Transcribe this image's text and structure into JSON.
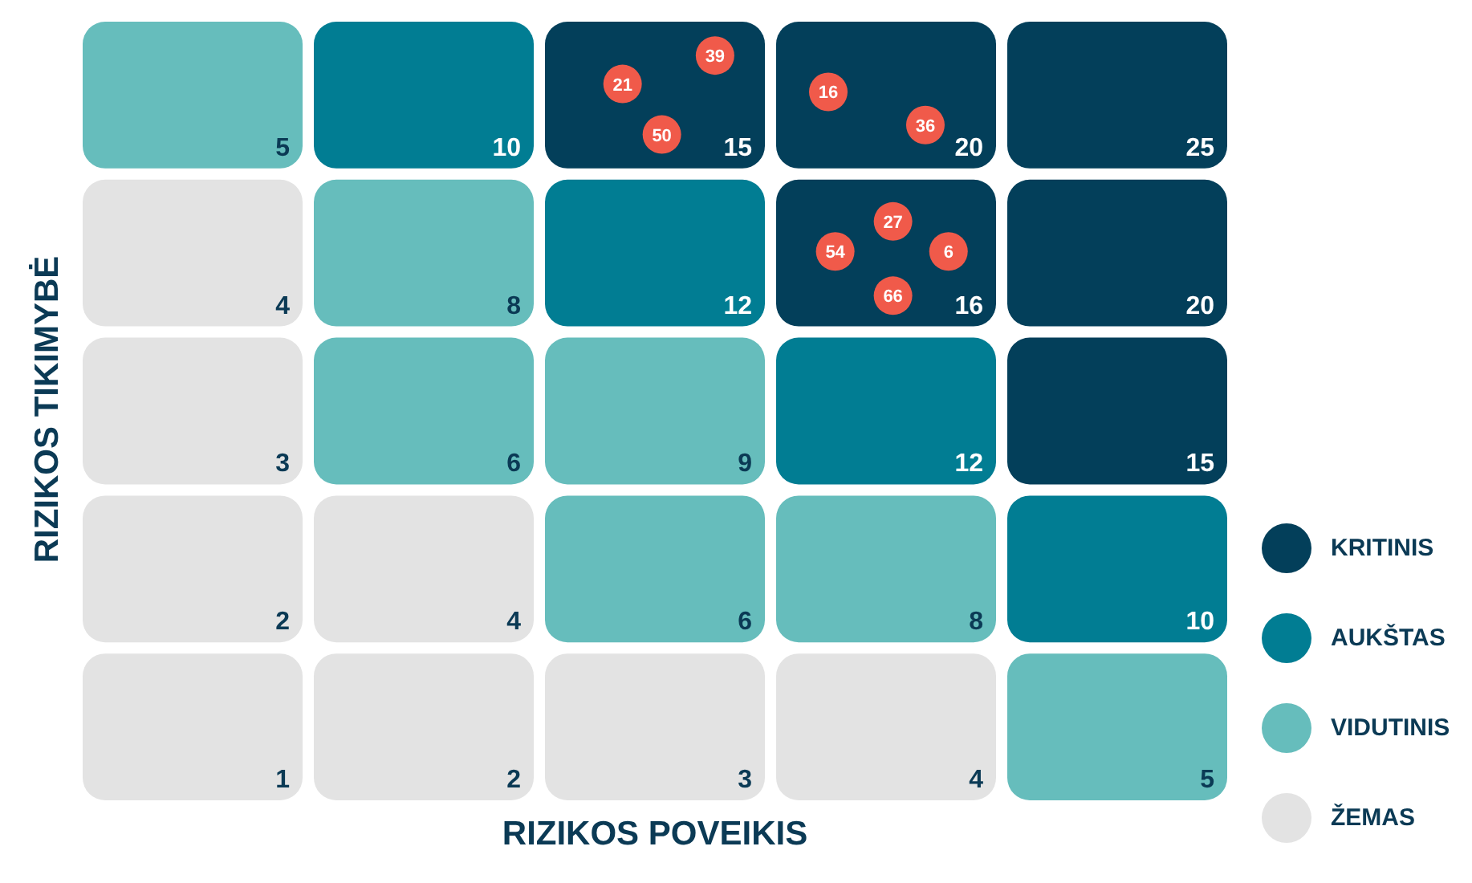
{
  "chart_data": [
    {
      "type": "heatmap",
      "xlabel": "RIZIKOS POVEIKIS",
      "ylabel": "RIZIKOS TIKIMYBĖ",
      "categories": [
        null,
        null,
        null,
        null,
        null
      ],
      "y_categories": [
        null,
        null,
        null,
        null,
        null
      ],
      "cells": [
        [
          5,
          10,
          15,
          20,
          25
        ],
        [
          4,
          8,
          12,
          16,
          20
        ],
        [
          3,
          6,
          9,
          12,
          15
        ],
        [
          2,
          4,
          6,
          8,
          10
        ],
        [
          1,
          2,
          3,
          4,
          5
        ]
      ],
      "colors": [
        [
          "#66bdbc",
          "#017d93",
          "#033f5a",
          "#033f5a",
          "#033f5a"
        ],
        [
          "#e3e3e3",
          "#66bdbc",
          "#017d93",
          "#033f5a",
          "#033f5a"
        ],
        [
          "#e3e3e3",
          "#66bdbc",
          "#66bdbc",
          "#017d93",
          "#033f5a"
        ],
        [
          "#e3e3e3",
          "#e3e3e3",
          "#66bdbc",
          "#66bdbc",
          "#017d93"
        ],
        [
          "#e3e3e3",
          "#e3e3e3",
          "#e3e3e3",
          "#e3e3e3",
          "#66bdbc"
        ]
      ],
      "data_labels": true,
      "annotations": [
        "21",
        "39",
        "50",
        "16",
        "36",
        "27",
        "54",
        "6",
        "66"
      ]
    },
    {
      "type": "other",
      "categories": [
        "KRITINIS",
        "AUKŠTAS",
        "VIDUTINIS",
        "ŽEMAS"
      ],
      "colors": [
        "#033f5a",
        "#017d93",
        "#66bdbc",
        "#e3e3e3"
      ]
    }
  ]
}
